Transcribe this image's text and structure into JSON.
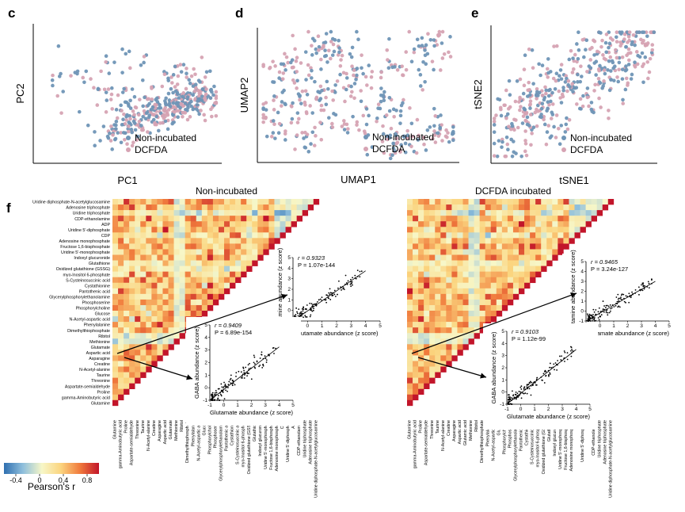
{
  "panel_letters": {
    "c": "c",
    "d": "d",
    "e": "e",
    "f": "f"
  },
  "legend": {
    "non": "Non-incubated",
    "dcfda": "DCFDA"
  },
  "colors": {
    "non": "#6f95b6",
    "dcfda": "#d6a3b3"
  },
  "chart_data": [
    {
      "id": "c",
      "type": "scatter",
      "xlabel": "PC1",
      "ylabel": "PC2",
      "series": [
        {
          "name": "Non-incubated",
          "color": "#6f95b6"
        },
        {
          "name": "DCFDA",
          "color": "#d6a3b3"
        }
      ]
    },
    {
      "id": "d",
      "type": "scatter",
      "xlabel": "UMAP1",
      "ylabel": "UMAP2",
      "series": [
        {
          "name": "Non-incubated",
          "color": "#6f95b6"
        },
        {
          "name": "DCFDA",
          "color": "#d6a3b3"
        }
      ]
    },
    {
      "id": "e",
      "type": "scatter",
      "xlabel": "tSNE1",
      "ylabel": "tSNE2",
      "series": [
        {
          "name": "Non-incubated",
          "color": "#6f95b6"
        },
        {
          "name": "DCFDA",
          "color": "#d6a3b3"
        }
      ]
    },
    {
      "id": "f",
      "type": "heatmap",
      "titles": [
        "Non-incubated",
        "DCFDA incubated"
      ],
      "colorbar": {
        "label": "Pearson's r",
        "ticks": [
          "-0.4",
          "0",
          "0.4",
          "0.8"
        ],
        "range": [
          -0.6,
          1.0
        ]
      }
    }
  ],
  "heatmap": {
    "title_left": "Non-incubated",
    "title_right": "DCFDA incubated",
    "labels": [
      "Uridine diphosphate-N-acetylglucosamine",
      "Adenosine triphosphate",
      "Uridine triphosphate",
      "CDP-ethanolamine",
      "ADP",
      "Uridine 5'-diphosphate",
      "CDP",
      "Adenosine monophosphate",
      "Fructose 1,6-bisphosphate",
      "Uridine 5'-monophosphate",
      "Indoxyl glucuronide",
      "Glutathione",
      "Oxidized glutathione (GSSG)",
      "myo-Inositol 6-phosphate",
      "S-Cysteinosuccinic acid",
      "Cystathionine",
      "Pantothenic acid",
      "Glycerylphosphorylethanolamine",
      "Phosphoserine",
      "Phosphorylcholine",
      "Glucose",
      "N-Acetyl-aspartic acid",
      "Phenylalanine",
      "Dimethylthiophosphate",
      "Ribitol",
      "Methionine",
      "Glutamate",
      "Aspartic acid",
      "Asparagine",
      "Creatine",
      "N-Acetyl-alanine",
      "Taurine",
      "Threonine",
      "Aspartate-semialdehyde",
      "Proline",
      "gamma-Aminobutyric acid",
      "Glutamine"
    ],
    "labels_bottom": [
      "Glutamine",
      "gamma-Aminobutyric acid",
      "Proline",
      "Aspartate-semialdehyde",
      "Threonine",
      "Taurine",
      "N-Acetyl-alanine",
      "Creatine",
      "Asparagine",
      "Aspartic acid",
      "Glutamate",
      "Methionine",
      "Ribitol",
      "Dimethylthiophosphate",
      "Phenylalanine",
      "N-Acetyl-aspartic acid",
      "Glucose",
      "Phosphorylcholine",
      "Phosphoserine",
      "Glycerylphosphorylethanolamine",
      "Pantothenic acid",
      "Cystathionine",
      "S-Cysteinosuccinic acid",
      "myo-Inositol 6-phosphate",
      "Oxidized glutathione (GSSG)",
      "Glutathione",
      "Indoxyl glucuronide",
      "Uridine 5'-monophosphate",
      "Fructose 1,6-bisphosphate",
      "Adenosine monophosphate",
      "CDP",
      "Uridine 5'-diphosphate",
      "ADP",
      "CDP-ethanolamine",
      "Uridine triphosphate",
      "Adenosine triphosphate",
      "Uridine diphosphate-N-acetylglucosamine"
    ],
    "labels_bottom_right": [
      "Glutamine",
      "gamma-Aminobutyric acid",
      "Proline",
      "Aspartate-semialdehyde",
      "Threonine",
      "Taurine",
      "N-Acetyl-alanine",
      "Creatine",
      "Asparagine",
      "Aspartic acid",
      "Glutamic acid",
      "Methionine",
      "Ribitol",
      "Dimethylthiophosphate",
      "Phenylalanine",
      "N-Acetyl-aspartic acid",
      "Glucose",
      "Phosphorylcholine",
      "Phosphoserine",
      "Glycerylphosphorylethanolamine",
      "Pantothenic acid",
      "Cystathionine",
      "S-Cysteinosuccinic acid",
      "myo-Inositol 6-phosphate",
      "Oxidized glutathione (GSSG)",
      "Glutathione",
      "Indoxyl glucuronide",
      "Uridine 5'-monophosphate",
      "Fructose 1,6-bisphosphate",
      "Adenosine monophosphate",
      "CDP",
      "Uridine 5'-diphosphate",
      "ADP",
      "CDP-ethanolamine",
      "Uridine triphosphate",
      "Adenosine triphosphate",
      "Uridine diphosphate-N-acetylglucosamine"
    ]
  },
  "insets": [
    {
      "id": "l1",
      "xlabel": "Glutamate abundance (z score)",
      "ylabel": "Glutamine abundance (z score)",
      "r": "r = 0.9323",
      "p": "P = 1.07e-144",
      "xticks": [
        "-1",
        "0",
        "1",
        "2",
        "3",
        "4",
        "5"
      ],
      "yticks": [
        "-1",
        "0",
        "1",
        "2",
        "3",
        "4",
        "5"
      ]
    },
    {
      "id": "l2",
      "xlabel": "Glutamate abundance (z score)",
      "ylabel": "GABA abundance (z score)",
      "r": "r = 0.9409",
      "p": "P = 6.89e-154",
      "xticks": [
        "-1",
        "0",
        "1",
        "2",
        "3",
        "4",
        "5"
      ],
      "yticks": [
        "-1",
        "0",
        "1",
        "2",
        "3",
        "4",
        "5"
      ]
    },
    {
      "id": "r1",
      "xlabel": "Glutamate abundance (z score)",
      "ylabel": "Glutamine abundance (z score)",
      "r": "r = 0.9465",
      "p": "P = 3.24e-127",
      "xticks": [
        "-1",
        "0",
        "1",
        "2",
        "3",
        "4",
        "5"
      ],
      "yticks": [
        "-1",
        "0",
        "1",
        "2",
        "3",
        "4",
        "5"
      ]
    },
    {
      "id": "r2",
      "xlabel": "Glutamate abundance (z score)",
      "ylabel": "GABA abundance (z score)",
      "r": "r = 0.9103",
      "p": "P = 1.12e-99",
      "xticks": [
        "-1",
        "0",
        "1",
        "2",
        "3",
        "4",
        "5"
      ],
      "yticks": [
        "-1",
        "0",
        "1",
        "2",
        "3",
        "4",
        "5"
      ]
    }
  ]
}
